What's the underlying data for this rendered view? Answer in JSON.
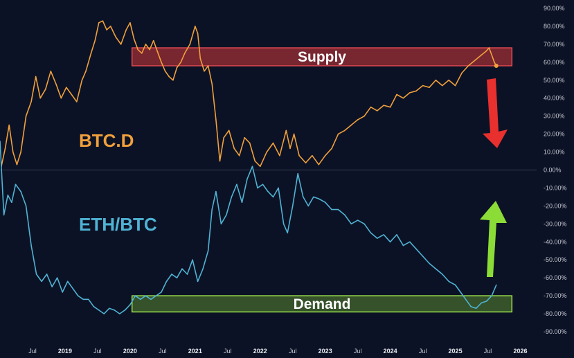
{
  "chart_data": {
    "type": "line",
    "title": "",
    "xlabel": "",
    "ylabel": "",
    "ylim": [
      -90,
      90
    ],
    "y_ticks": [
      90,
      80,
      70,
      60,
      50,
      40,
      30,
      20,
      10,
      0,
      -10,
      -20,
      -30,
      -40,
      -50,
      -60,
      -70,
      -80,
      -90
    ],
    "y_tick_suffix": "%",
    "x_ticks": [
      {
        "t": 2018.5,
        "label": "Jul",
        "year": false
      },
      {
        "t": 2019.0,
        "label": "2019",
        "year": true
      },
      {
        "t": 2019.5,
        "label": "Jul",
        "year": false
      },
      {
        "t": 2020.0,
        "label": "2020",
        "year": true
      },
      {
        "t": 2020.5,
        "label": "Jul",
        "year": false
      },
      {
        "t": 2021.0,
        "label": "2021",
        "year": true
      },
      {
        "t": 2021.5,
        "label": "Jul",
        "year": false
      },
      {
        "t": 2022.0,
        "label": "2022",
        "year": true
      },
      {
        "t": 2022.5,
        "label": "Jul",
        "year": false
      },
      {
        "t": 2023.0,
        "label": "2023",
        "year": true
      },
      {
        "t": 2023.5,
        "label": "Jul",
        "year": false
      },
      {
        "t": 2024.0,
        "label": "2024",
        "year": true
      },
      {
        "t": 2024.5,
        "label": "Jul",
        "year": false
      },
      {
        "t": 2025.0,
        "label": "2025",
        "year": true
      },
      {
        "t": 2025.5,
        "label": "Jul",
        "year": false
      },
      {
        "t": 2026.0,
        "label": "2026",
        "year": true
      }
    ],
    "grid": false,
    "series": [
      {
        "name": "BTC.D",
        "color": "#f0a03c",
        "points": [
          [
            2018.02,
            2
          ],
          [
            2018.08,
            12
          ],
          [
            2018.14,
            25
          ],
          [
            2018.2,
            10
          ],
          [
            2018.26,
            3
          ],
          [
            2018.32,
            10
          ],
          [
            2018.4,
            30
          ],
          [
            2018.48,
            38
          ],
          [
            2018.55,
            52
          ],
          [
            2018.62,
            40
          ],
          [
            2018.7,
            45
          ],
          [
            2018.78,
            55
          ],
          [
            2018.86,
            48
          ],
          [
            2018.94,
            40
          ],
          [
            2019.02,
            46
          ],
          [
            2019.1,
            42
          ],
          [
            2019.18,
            38
          ],
          [
            2019.26,
            50
          ],
          [
            2019.32,
            55
          ],
          [
            2019.4,
            65
          ],
          [
            2019.46,
            72
          ],
          [
            2019.52,
            82
          ],
          [
            2019.58,
            83
          ],
          [
            2019.64,
            78
          ],
          [
            2019.7,
            80
          ],
          [
            2019.78,
            74
          ],
          [
            2019.86,
            70
          ],
          [
            2019.94,
            78
          ],
          [
            2020.0,
            82
          ],
          [
            2020.06,
            73
          ],
          [
            2020.12,
            67
          ],
          [
            2020.18,
            65
          ],
          [
            2020.24,
            70
          ],
          [
            2020.3,
            67
          ],
          [
            2020.36,
            72
          ],
          [
            2020.42,
            66
          ],
          [
            2020.48,
            60
          ],
          [
            2020.54,
            55
          ],
          [
            2020.6,
            52
          ],
          [
            2020.66,
            50
          ],
          [
            2020.72,
            57
          ],
          [
            2020.78,
            60
          ],
          [
            2020.84,
            65
          ],
          [
            2020.92,
            70
          ],
          [
            2021.0,
            80
          ],
          [
            2021.04,
            76
          ],
          [
            2021.08,
            62
          ],
          [
            2021.14,
            55
          ],
          [
            2021.2,
            58
          ],
          [
            2021.26,
            48
          ],
          [
            2021.32,
            28
          ],
          [
            2021.38,
            5
          ],
          [
            2021.44,
            18
          ],
          [
            2021.52,
            22
          ],
          [
            2021.6,
            12
          ],
          [
            2021.68,
            8
          ],
          [
            2021.76,
            18
          ],
          [
            2021.84,
            15
          ],
          [
            2021.92,
            5
          ],
          [
            2022.0,
            2
          ],
          [
            2022.1,
            10
          ],
          [
            2022.2,
            15
          ],
          [
            2022.3,
            8
          ],
          [
            2022.4,
            22
          ],
          [
            2022.46,
            12
          ],
          [
            2022.52,
            20
          ],
          [
            2022.6,
            8
          ],
          [
            2022.7,
            4
          ],
          [
            2022.8,
            8
          ],
          [
            2022.9,
            3
          ],
          [
            2023.0,
            8
          ],
          [
            2023.1,
            12
          ],
          [
            2023.2,
            20
          ],
          [
            2023.3,
            22
          ],
          [
            2023.4,
            25
          ],
          [
            2023.5,
            28
          ],
          [
            2023.6,
            30
          ],
          [
            2023.7,
            35
          ],
          [
            2023.8,
            33
          ],
          [
            2023.9,
            36
          ],
          [
            2024.0,
            35
          ],
          [
            2024.1,
            42
          ],
          [
            2024.2,
            40
          ],
          [
            2024.3,
            43
          ],
          [
            2024.4,
            44
          ],
          [
            2024.5,
            47
          ],
          [
            2024.6,
            46
          ],
          [
            2024.7,
            50
          ],
          [
            2024.8,
            47
          ],
          [
            2024.9,
            50
          ],
          [
            2025.0,
            47
          ],
          [
            2025.1,
            54
          ],
          [
            2025.2,
            58
          ],
          [
            2025.3,
            61
          ],
          [
            2025.4,
            64
          ],
          [
            2025.47,
            66
          ],
          [
            2025.52,
            68
          ],
          [
            2025.56,
            64
          ],
          [
            2025.6,
            60
          ],
          [
            2025.63,
            58
          ]
        ]
      },
      {
        "name": "ETH/BTC",
        "color": "#4fb3d4",
        "points": [
          [
            2018.0,
            16
          ],
          [
            2018.06,
            -25
          ],
          [
            2018.12,
            -14
          ],
          [
            2018.18,
            -18
          ],
          [
            2018.24,
            -8
          ],
          [
            2018.32,
            -12
          ],
          [
            2018.4,
            -20
          ],
          [
            2018.48,
            -42
          ],
          [
            2018.56,
            -58
          ],
          [
            2018.64,
            -62
          ],
          [
            2018.72,
            -58
          ],
          [
            2018.8,
            -65
          ],
          [
            2018.88,
            -60
          ],
          [
            2018.96,
            -68
          ],
          [
            2019.04,
            -62
          ],
          [
            2019.12,
            -66
          ],
          [
            2019.2,
            -70
          ],
          [
            2019.28,
            -72
          ],
          [
            2019.36,
            -72
          ],
          [
            2019.44,
            -76
          ],
          [
            2019.52,
            -78
          ],
          [
            2019.6,
            -80
          ],
          [
            2019.68,
            -77
          ],
          [
            2019.76,
            -78
          ],
          [
            2019.84,
            -80
          ],
          [
            2019.92,
            -78
          ],
          [
            2020.0,
            -75
          ],
          [
            2020.08,
            -70
          ],
          [
            2020.16,
            -72
          ],
          [
            2020.24,
            -70
          ],
          [
            2020.32,
            -72
          ],
          [
            2020.4,
            -70
          ],
          [
            2020.48,
            -68
          ],
          [
            2020.56,
            -62
          ],
          [
            2020.64,
            -58
          ],
          [
            2020.72,
            -60
          ],
          [
            2020.8,
            -55
          ],
          [
            2020.88,
            -58
          ],
          [
            2020.96,
            -50
          ],
          [
            2021.04,
            -62
          ],
          [
            2021.12,
            -55
          ],
          [
            2021.2,
            -45
          ],
          [
            2021.26,
            -22
          ],
          [
            2021.32,
            -12
          ],
          [
            2021.4,
            -30
          ],
          [
            2021.48,
            -25
          ],
          [
            2021.56,
            -15
          ],
          [
            2021.64,
            -8
          ],
          [
            2021.72,
            -18
          ],
          [
            2021.8,
            -5
          ],
          [
            2021.88,
            2
          ],
          [
            2021.96,
            -10
          ],
          [
            2022.04,
            -8
          ],
          [
            2022.12,
            -12
          ],
          [
            2022.2,
            -15
          ],
          [
            2022.28,
            -10
          ],
          [
            2022.36,
            -30
          ],
          [
            2022.42,
            -35
          ],
          [
            2022.5,
            -20
          ],
          [
            2022.58,
            -2
          ],
          [
            2022.66,
            -15
          ],
          [
            2022.74,
            -20
          ],
          [
            2022.82,
            -15
          ],
          [
            2022.9,
            -16
          ],
          [
            2023.0,
            -18
          ],
          [
            2023.1,
            -22
          ],
          [
            2023.2,
            -22
          ],
          [
            2023.3,
            -25
          ],
          [
            2023.4,
            -30
          ],
          [
            2023.5,
            -28
          ],
          [
            2023.6,
            -30
          ],
          [
            2023.7,
            -35
          ],
          [
            2023.8,
            -38
          ],
          [
            2023.9,
            -36
          ],
          [
            2024.0,
            -40
          ],
          [
            2024.1,
            -36
          ],
          [
            2024.2,
            -42
          ],
          [
            2024.3,
            -40
          ],
          [
            2024.4,
            -44
          ],
          [
            2024.5,
            -48
          ],
          [
            2024.6,
            -52
          ],
          [
            2024.7,
            -55
          ],
          [
            2024.8,
            -58
          ],
          [
            2024.9,
            -62
          ],
          [
            2025.0,
            -64
          ],
          [
            2025.08,
            -68
          ],
          [
            2025.16,
            -72
          ],
          [
            2025.24,
            -76
          ],
          [
            2025.32,
            -77
          ],
          [
            2025.4,
            -74
          ],
          [
            2025.48,
            -73
          ],
          [
            2025.56,
            -70
          ],
          [
            2025.63,
            -64
          ]
        ]
      }
    ],
    "zones": [
      {
        "label": "Supply",
        "t_start": 2020.03,
        "t_end": 2025.87,
        "y_top": 68,
        "y_bottom": 58,
        "fill": "#8c2a32",
        "stroke": "#e24b54"
      },
      {
        "label": "Demand",
        "t_start": 2020.03,
        "t_end": 2025.87,
        "y_top": -70,
        "y_bottom": -79,
        "fill": "#3d5e2c",
        "stroke": "#9be24c"
      }
    ],
    "annotations": [
      {
        "text": "BTC.D",
        "color": "#f0a03c"
      },
      {
        "text": "ETH/BTC",
        "color": "#4fb3d4"
      }
    ],
    "arrows": [
      {
        "name": "down-arrow",
        "color": "#e8302f",
        "direction": "down"
      },
      {
        "name": "up-arrow",
        "color": "#8bdc36",
        "direction": "up"
      }
    ]
  }
}
